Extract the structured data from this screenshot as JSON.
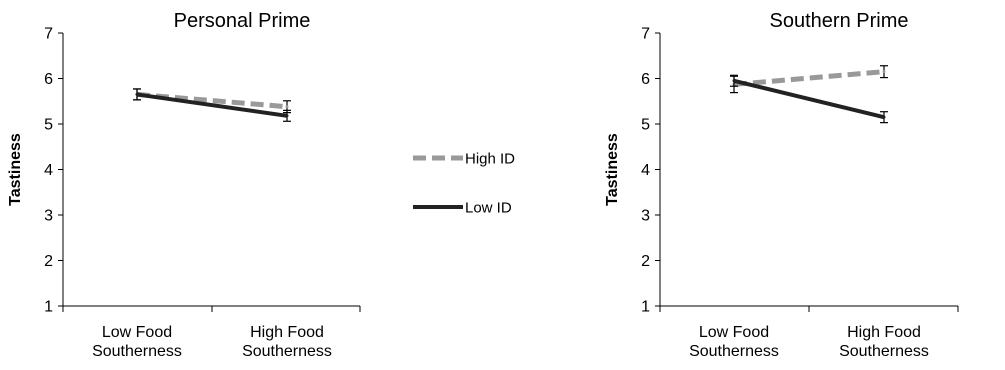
{
  "chart_data": [
    {
      "type": "line",
      "title": "Personal Prime",
      "ylabel": "Tastiness",
      "xlabel": "",
      "categories": [
        [
          "Low Food",
          "Southerness"
        ],
        [
          "High Food",
          "Southerness"
        ]
      ],
      "ylim": [
        1,
        7
      ],
      "yticks": [
        1,
        2,
        3,
        4,
        5,
        6,
        7
      ],
      "series": [
        {
          "name": "High ID",
          "values": [
            5.65,
            5.38
          ],
          "errors": [
            0.12,
            0.13
          ],
          "color": "#999999",
          "dash": true
        },
        {
          "name": "Low ID",
          "values": [
            5.65,
            5.18
          ],
          "errors": [
            0.12,
            0.12
          ],
          "color": "#222222",
          "dash": false
        }
      ]
    },
    {
      "type": "line",
      "title": "Southern Prime",
      "ylabel": "Tastiness",
      "xlabel": "",
      "categories": [
        [
          "Low Food",
          "Southerness"
        ],
        [
          "High Food",
          "Southerness"
        ]
      ],
      "ylim": [
        1,
        7
      ],
      "yticks": [
        1,
        2,
        3,
        4,
        5,
        6,
        7
      ],
      "series": [
        {
          "name": "High ID",
          "values": [
            5.87,
            6.15
          ],
          "errors": [
            0.18,
            0.13
          ],
          "color": "#999999",
          "dash": true
        },
        {
          "name": "Low ID",
          "values": [
            5.95,
            5.15
          ],
          "errors": [
            0.12,
            0.12
          ],
          "color": "#222222",
          "dash": false
        }
      ]
    }
  ],
  "legend": {
    "placement": "center",
    "items": [
      {
        "label": "High ID",
        "color": "#999999",
        "dash": true
      },
      {
        "label": "Low ID",
        "color": "#222222",
        "dash": false
      }
    ]
  }
}
